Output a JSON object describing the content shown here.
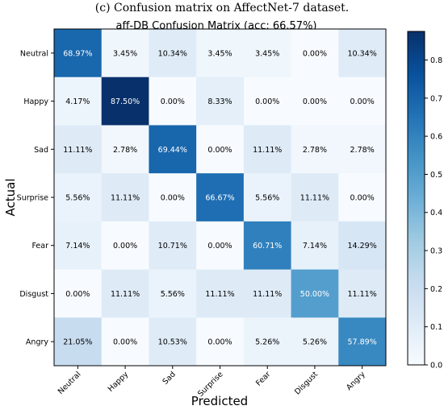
{
  "caption": "(c) Confusion matrix on AffectNet-7 dataset.",
  "chart_data": {
    "type": "heatmap",
    "title": "aff-DB Confusion Matrix (acc: 66.57%)",
    "xlabel": "Predicted",
    "ylabel": "Actual",
    "colormap": "Blues",
    "color_range": [
      0.0,
      0.875
    ],
    "colorbar_ticks": [
      "0.0",
      "0.1",
      "0.2",
      "0.3",
      "0.4",
      "0.5",
      "0.6",
      "0.7",
      "0.8"
    ],
    "rows": [
      "Neutral",
      "Happy",
      "Sad",
      "Surprise",
      "Fear",
      "Disgust",
      "Angry"
    ],
    "columns": [
      "Neutral",
      "Happy",
      "Sad",
      "Surprise",
      "Fear",
      "Disgust",
      "Angry"
    ],
    "values": [
      [
        0.6897,
        0.0345,
        0.1034,
        0.0345,
        0.0345,
        0.0,
        0.1034
      ],
      [
        0.0417,
        0.875,
        0.0,
        0.0833,
        0.0,
        0.0,
        0.0
      ],
      [
        0.1111,
        0.0278,
        0.6944,
        0.0,
        0.1111,
        0.0278,
        0.0278
      ],
      [
        0.0556,
        0.1111,
        0.0,
        0.6667,
        0.0556,
        0.1111,
        0.0
      ],
      [
        0.0714,
        0.0,
        0.1071,
        0.0,
        0.6071,
        0.0714,
        0.1429
      ],
      [
        0.0,
        0.1111,
        0.0556,
        0.1111,
        0.1111,
        0.5,
        0.1111
      ],
      [
        0.2105,
        0.0,
        0.1053,
        0.0,
        0.0526,
        0.0526,
        0.5789
      ]
    ],
    "cell_labels": [
      [
        "68.97%",
        "3.45%",
        "10.34%",
        "3.45%",
        "3.45%",
        "0.00%",
        "10.34%"
      ],
      [
        "4.17%",
        "87.50%",
        "0.00%",
        "8.33%",
        "0.00%",
        "0.00%",
        "0.00%"
      ],
      [
        "11.11%",
        "2.78%",
        "69.44%",
        "0.00%",
        "11.11%",
        "2.78%",
        "2.78%"
      ],
      [
        "5.56%",
        "11.11%",
        "0.00%",
        "66.67%",
        "5.56%",
        "11.11%",
        "0.00%"
      ],
      [
        "7.14%",
        "0.00%",
        "10.71%",
        "0.00%",
        "60.71%",
        "7.14%",
        "14.29%"
      ],
      [
        "0.00%",
        "11.11%",
        "5.56%",
        "11.11%",
        "11.11%",
        "50.00%",
        "11.11%"
      ],
      [
        "21.05%",
        "0.00%",
        "10.53%",
        "0.00%",
        "5.26%",
        "5.26%",
        "57.89%"
      ]
    ]
  }
}
